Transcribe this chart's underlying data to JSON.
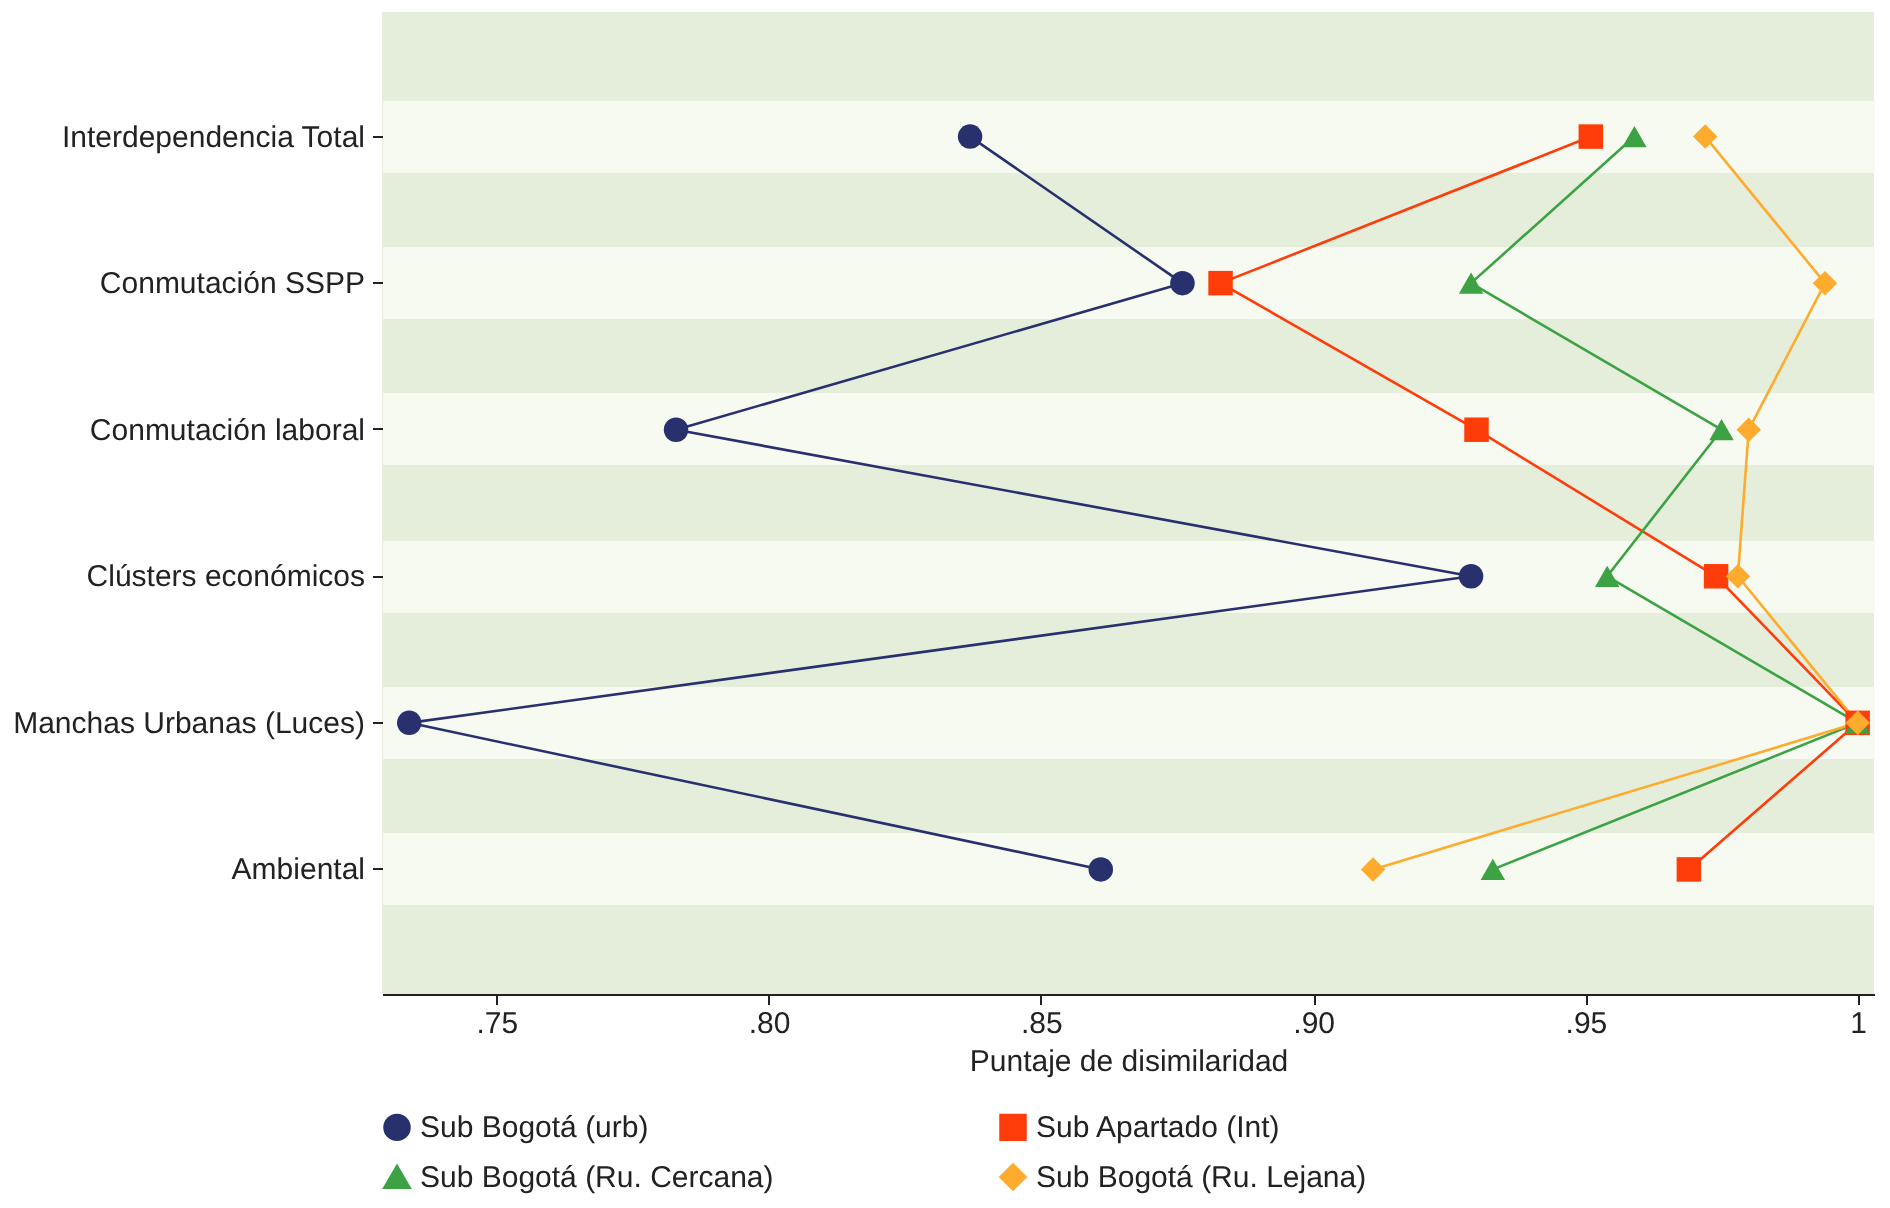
{
  "chart_data": {
    "type": "line",
    "orientation": "horizontal",
    "xlabel": "Puntaje de disimilaridad",
    "categories": [
      "Interdependencia Total",
      "Conmutación SSPP",
      "Conmutación laboral",
      "Clústers económicos",
      "Manchas Urbanas (Luces)",
      "Ambiental"
    ],
    "series": [
      {
        "name": "Sub Bogotá (urb)",
        "color": "#28306e",
        "marker": "circle",
        "values": [
          0.837,
          0.876,
          0.783,
          0.929,
          0.734,
          0.861
        ]
      },
      {
        "name": "Sub Apartado (Int)",
        "color": "#ff3d0a",
        "marker": "square",
        "values": [
          0.951,
          0.883,
          0.93,
          0.974,
          1.0,
          0.969
        ]
      },
      {
        "name": "Sub Bogotá (Ru. Cercana)",
        "color": "#3ca244",
        "marker": "triangle",
        "values": [
          0.959,
          0.929,
          0.975,
          0.954,
          1.0,
          0.933
        ]
      },
      {
        "name": "Sub Bogotá (Ru. Lejana)",
        "color": "#ffab2e",
        "marker": "diamond",
        "values": [
          0.972,
          0.994,
          0.98,
          0.978,
          1.0,
          0.911
        ]
      }
    ],
    "xlim": [
      0.729,
      1.003
    ],
    "xticks": [
      {
        "value": 0.75,
        "label": ".75"
      },
      {
        "value": 0.8,
        "label": ".80"
      },
      {
        "value": 0.85,
        "label": ".85"
      },
      {
        "value": 0.9,
        "label": ".90"
      },
      {
        "value": 0.95,
        "label": ".95"
      },
      1
    ],
    "grid": "y",
    "legend": "bottom",
    "line_style": "solid"
  }
}
